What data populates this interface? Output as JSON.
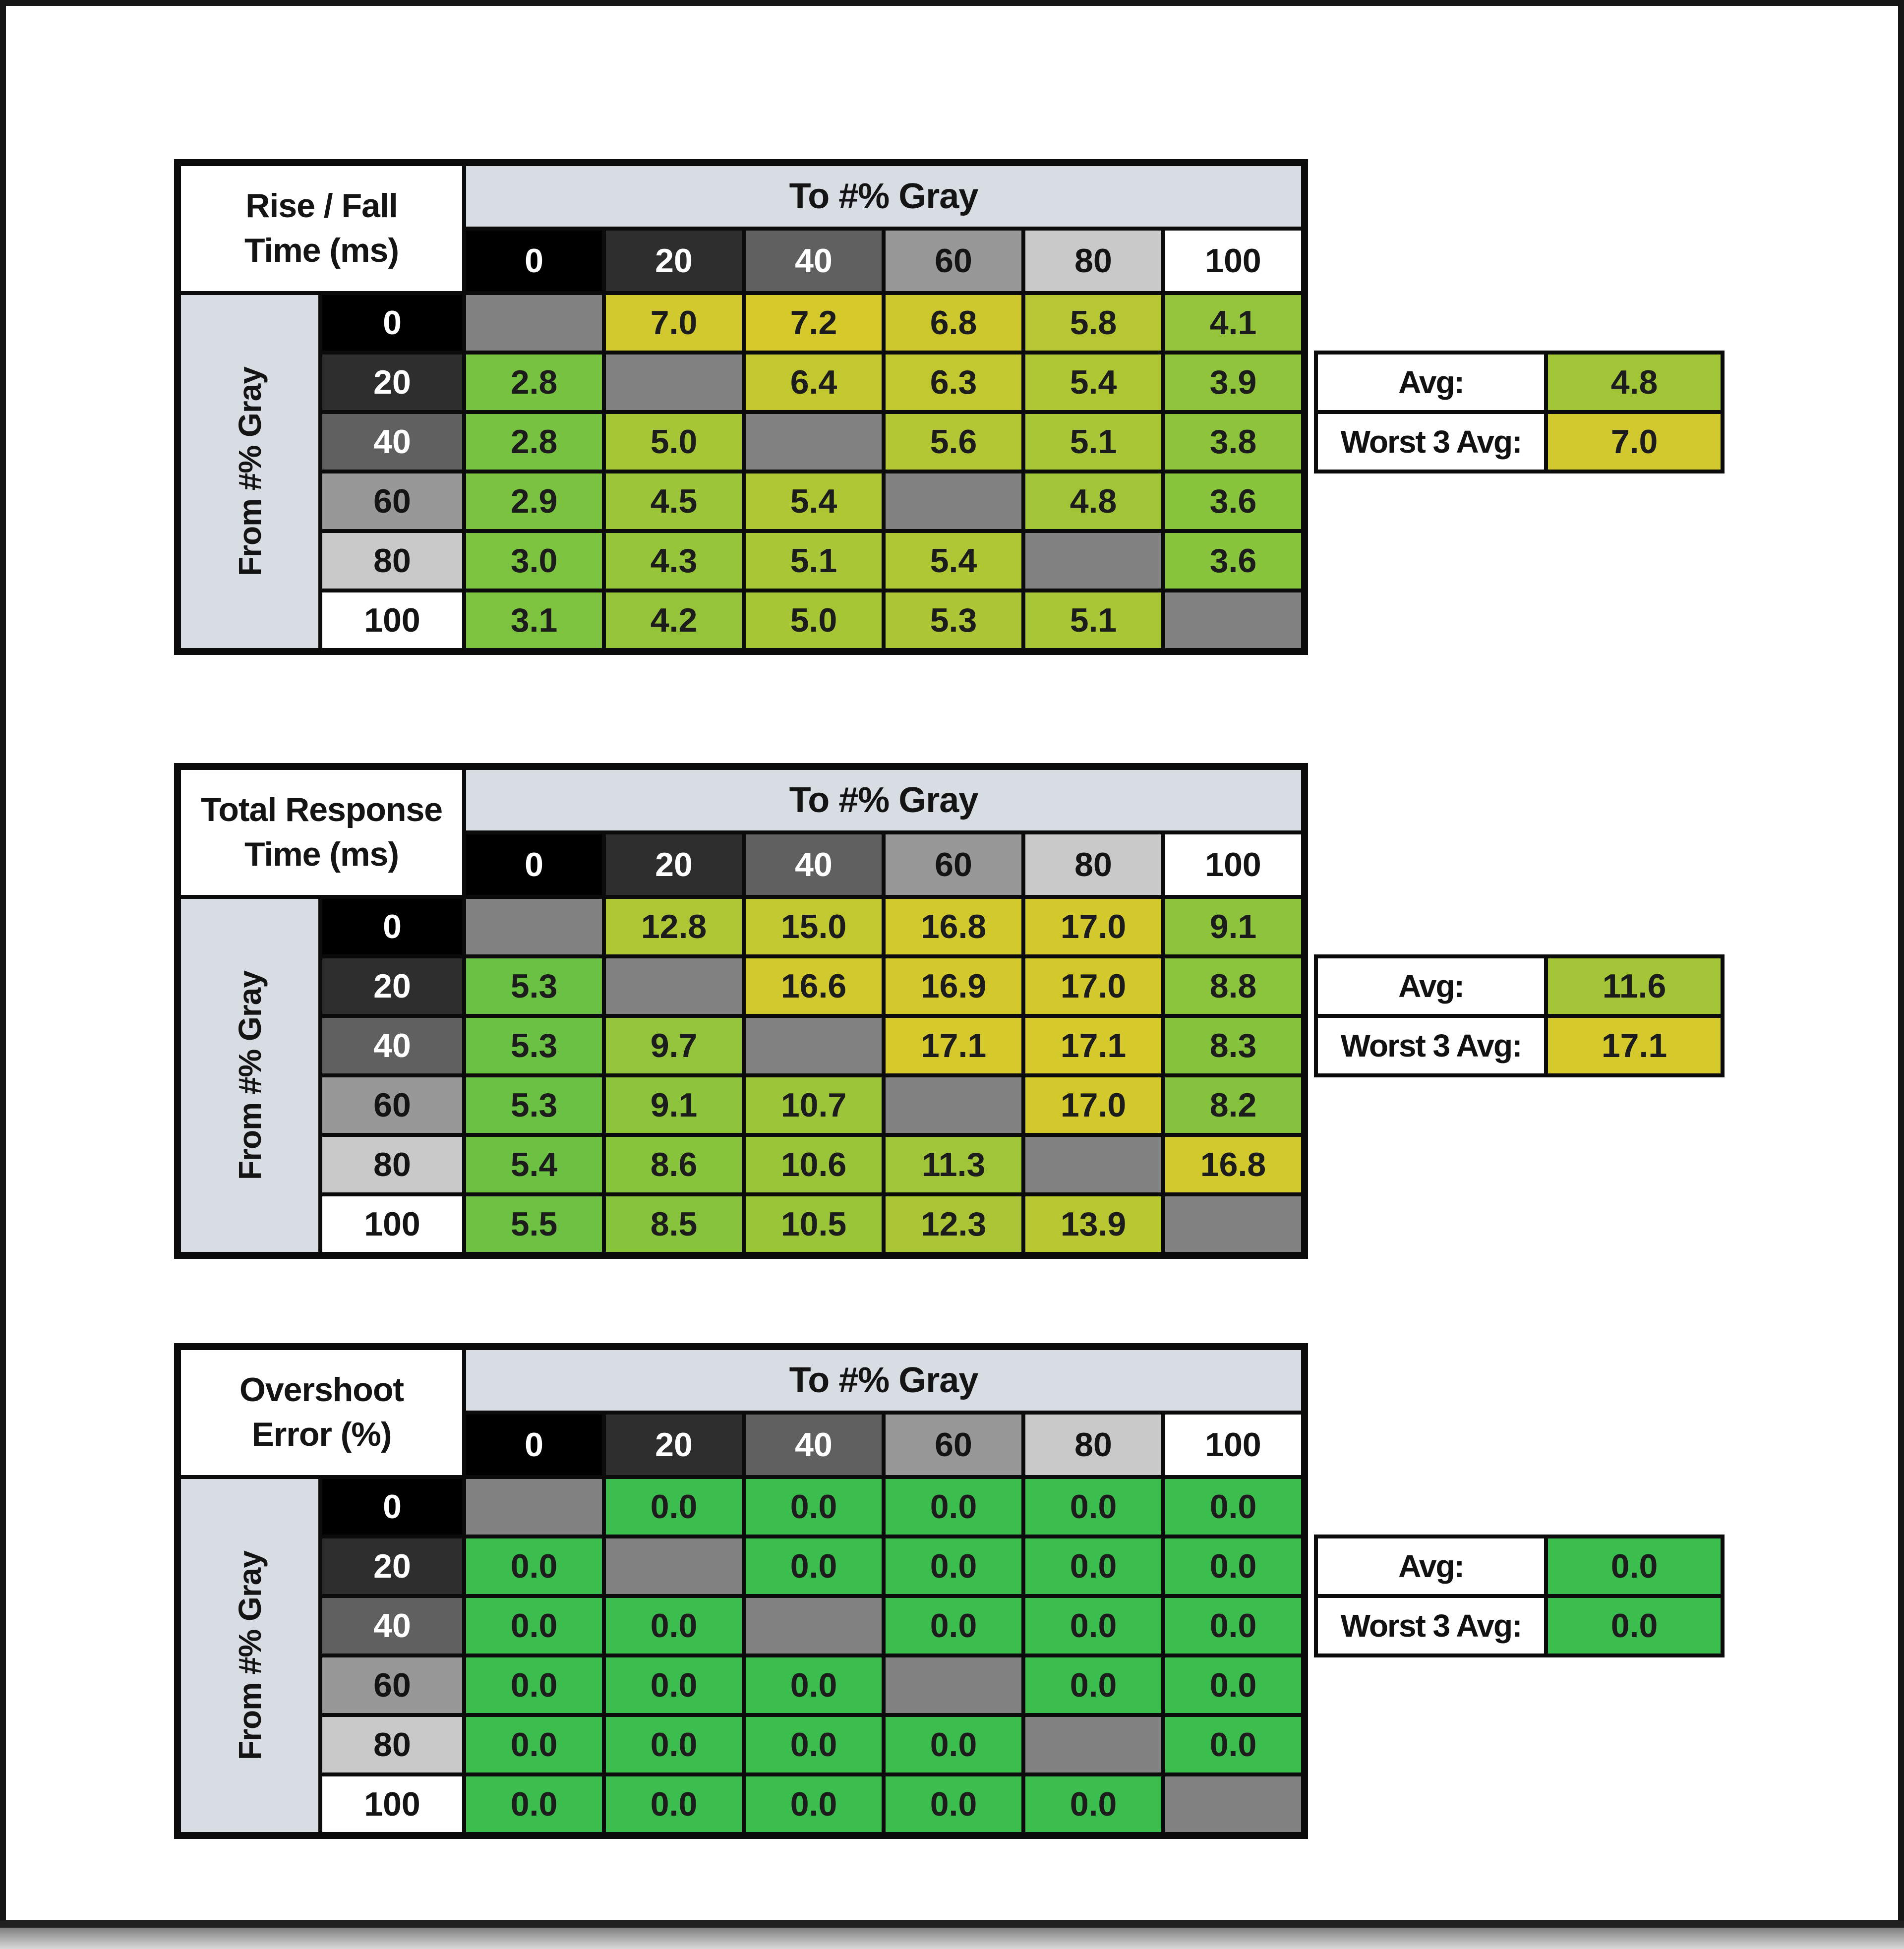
{
  "labels": {
    "to_axis": "To #% Gray",
    "from_axis": "From #% Gray",
    "avg": "Avg:",
    "worst": "Worst 3 Avg:"
  },
  "colors": {
    "heat_low_green": "#3cbe4e",
    "heat_high_yellow": "#d5c92c",
    "diagonal_gray": "#828282",
    "header_band": "#d8dde4",
    "gridline_black": "#0b0b0b",
    "gray_levels": [
      {
        "bg": "#000000",
        "fg": "#ffffff"
      },
      {
        "bg": "#2e2e2e",
        "fg": "#ffffff"
      },
      {
        "bg": "#606060",
        "fg": "#ffffff"
      },
      {
        "bg": "#989898",
        "fg": "#141414"
      },
      {
        "bg": "#c9c9c9",
        "fg": "#141414"
      },
      {
        "bg": "#ffffff",
        "fg": "#141414"
      }
    ]
  },
  "chart_data": [
    {
      "type": "heatmap",
      "title": "Rise / Fall Time (ms)",
      "title_lines": [
        "Rise / Fall",
        "Time (ms)"
      ],
      "x_label": "To #% Gray",
      "y_label": "From #% Gray",
      "categories": [
        0,
        20,
        40,
        60,
        80,
        100
      ],
      "matrix": [
        [
          null,
          7.0,
          7.2,
          6.8,
          5.8,
          4.1
        ],
        [
          2.8,
          null,
          6.4,
          6.3,
          5.4,
          3.9
        ],
        [
          2.8,
          5.0,
          null,
          5.6,
          5.1,
          3.8
        ],
        [
          2.9,
          4.5,
          5.4,
          null,
          4.8,
          3.6
        ],
        [
          3.0,
          4.3,
          5.1,
          5.4,
          null,
          3.6
        ],
        [
          3.1,
          4.2,
          5.0,
          5.3,
          5.1,
          null
        ]
      ],
      "avg": 4.8,
      "worst3_avg": 7.0,
      "color_max": 7.2
    },
    {
      "type": "heatmap",
      "title": "Total Response Time (ms)",
      "title_lines": [
        "Total Response",
        "Time (ms)"
      ],
      "x_label": "To #% Gray",
      "y_label": "From #% Gray",
      "categories": [
        0,
        20,
        40,
        60,
        80,
        100
      ],
      "matrix": [
        [
          null,
          12.8,
          15.0,
          16.8,
          17.0,
          9.1
        ],
        [
          5.3,
          null,
          16.6,
          16.9,
          17.0,
          8.8
        ],
        [
          5.3,
          9.7,
          null,
          17.1,
          17.1,
          8.3
        ],
        [
          5.3,
          9.1,
          10.7,
          null,
          17.0,
          8.2
        ],
        [
          5.4,
          8.6,
          10.6,
          11.3,
          null,
          16.8
        ],
        [
          5.5,
          8.5,
          10.5,
          12.3,
          13.9,
          null
        ]
      ],
      "avg": 11.6,
      "worst3_avg": 17.1,
      "color_max": 17.1
    },
    {
      "type": "heatmap",
      "title": "Overshoot Error (%)",
      "title_lines": [
        "Overshoot",
        "Error (%)"
      ],
      "x_label": "To #% Gray",
      "y_label": "From #% Gray",
      "categories": [
        0,
        20,
        40,
        60,
        80,
        100
      ],
      "matrix": [
        [
          null,
          0.0,
          0.0,
          0.0,
          0.0,
          0.0
        ],
        [
          0.0,
          null,
          0.0,
          0.0,
          0.0,
          0.0
        ],
        [
          0.0,
          0.0,
          null,
          0.0,
          0.0,
          0.0
        ],
        [
          0.0,
          0.0,
          0.0,
          null,
          0.0,
          0.0
        ],
        [
          0.0,
          0.0,
          0.0,
          0.0,
          null,
          0.0
        ],
        [
          0.0,
          0.0,
          0.0,
          0.0,
          0.0,
          null
        ]
      ],
      "avg": 0.0,
      "worst3_avg": 0.0,
      "color_max": 10
    }
  ]
}
